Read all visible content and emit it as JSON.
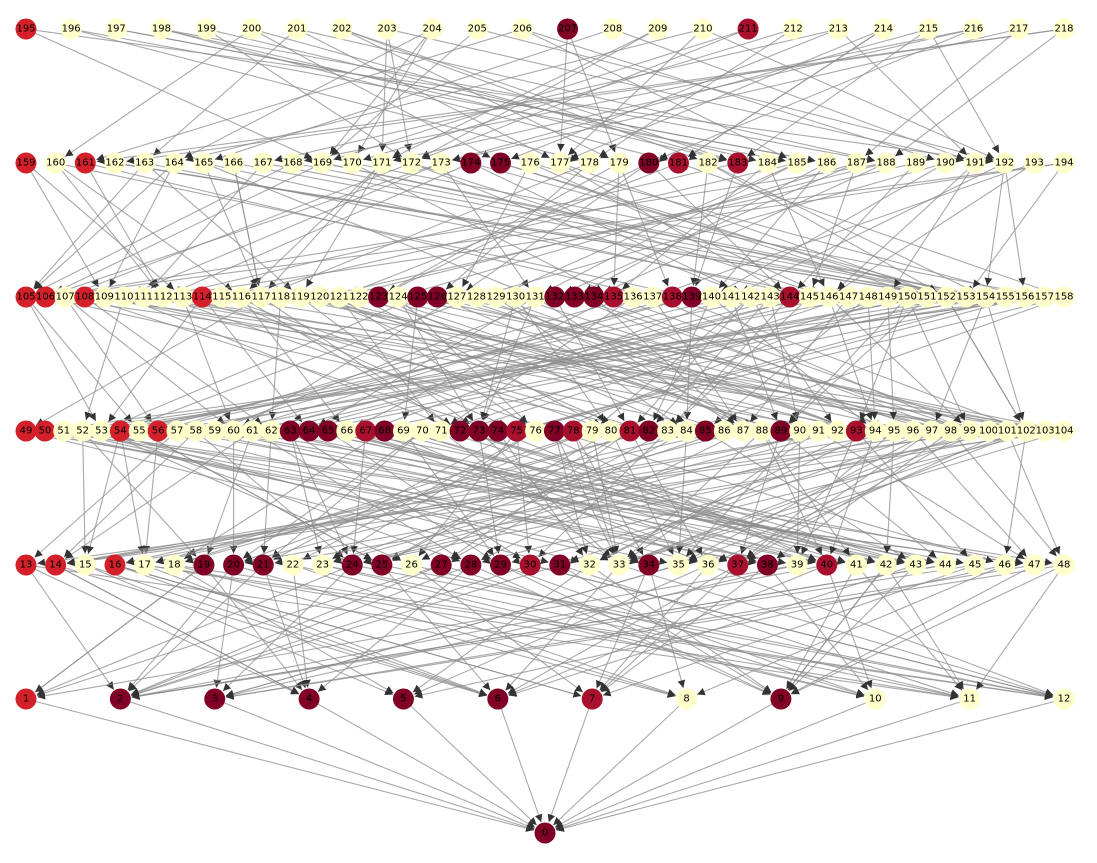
{
  "graph": {
    "rows": [
      [
        195,
        196,
        197,
        198,
        199,
        200,
        201,
        202,
        203,
        204,
        205,
        206,
        207,
        208,
        209,
        210,
        211,
        212,
        213,
        214,
        215,
        216,
        217,
        218
      ],
      [
        159,
        160,
        161,
        162,
        163,
        164,
        165,
        166,
        167,
        168,
        169,
        170,
        171,
        172,
        173,
        174,
        175,
        176,
        177,
        178,
        179,
        180,
        181,
        182,
        183,
        184,
        185,
        186,
        187,
        188,
        189,
        190,
        191,
        192,
        193,
        194
      ],
      [
        105,
        106,
        107,
        108,
        109,
        110,
        111,
        112,
        113,
        114,
        115,
        116,
        117,
        118,
        119,
        120,
        121,
        122,
        123,
        124,
        125,
        126,
        127,
        128,
        129,
        130,
        131,
        132,
        133,
        134,
        135,
        136,
        137,
        138,
        139,
        140,
        141,
        142,
        143,
        144,
        145,
        146,
        147,
        148,
        149,
        150,
        151,
        152,
        153,
        154,
        155,
        156,
        157,
        158
      ],
      [
        49,
        50,
        51,
        52,
        53,
        54,
        55,
        56,
        57,
        58,
        59,
        60,
        61,
        62,
        63,
        64,
        65,
        66,
        67,
        68,
        69,
        70,
        71,
        72,
        73,
        74,
        75,
        76,
        77,
        78,
        79,
        80,
        81,
        82,
        83,
        84,
        85,
        86,
        87,
        88,
        89,
        90,
        91,
        92,
        93,
        94,
        95,
        96,
        97,
        98,
        99,
        100,
        101,
        102,
        103,
        104
      ],
      [
        13,
        14,
        15,
        16,
        17,
        18,
        19,
        20,
        21,
        22,
        23,
        24,
        25,
        26,
        27,
        28,
        29,
        30,
        31,
        32,
        33,
        34,
        35,
        36,
        37,
        38,
        39,
        40,
        41,
        42,
        43,
        44,
        45,
        46,
        47,
        48
      ],
      [
        1,
        2,
        3,
        4,
        5,
        6,
        7,
        8,
        9,
        10,
        11,
        12
      ],
      [
        0
      ]
    ],
    "tones": {
      "195": "red",
      "207": "dark",
      "211": "crimson",
      "159": "red",
      "161": "red",
      "174": "dark",
      "175": "dark",
      "180": "dark",
      "181": "crimson",
      "183": "crimson",
      "105": "red",
      "106": "red",
      "108": "red",
      "114": "red",
      "123": "dark",
      "125": "dark",
      "126": "dark",
      "132": "dark",
      "133": "dark",
      "134": "dark",
      "135": "crimson",
      "138": "crimson",
      "139": "dark",
      "144": "crimson",
      "49": "red",
      "50": "red",
      "54": "red",
      "56": "red",
      "63": "dark",
      "64": "dark",
      "65": "dark",
      "67": "crimson",
      "68": "dark",
      "72": "dark",
      "73": "dark",
      "74": "dark",
      "75": "crimson",
      "77": "dark",
      "78": "crimson",
      "81": "crimson",
      "82": "dark",
      "85": "dark",
      "89": "dark",
      "93": "crimson",
      "13": "red",
      "14": "red",
      "16": "red",
      "19": "dark",
      "20": "dark",
      "21": "dark",
      "24": "dark",
      "25": "dark",
      "27": "dark",
      "28": "dark",
      "29": "dark",
      "30": "crimson",
      "31": "dark",
      "34": "dark",
      "37": "crimson",
      "38": "dark",
      "40": "crimson",
      "1": "red",
      "2": "dark",
      "3": "dark",
      "4": "dark",
      "5": "dark",
      "6": "dark",
      "7": "crimson",
      "9": "dark",
      "0": "dark"
    },
    "palette": {
      "red": "#d3202a",
      "crimson": "#a8102e",
      "dark": "#800026",
      "light": "#ffffcc"
    }
  }
}
